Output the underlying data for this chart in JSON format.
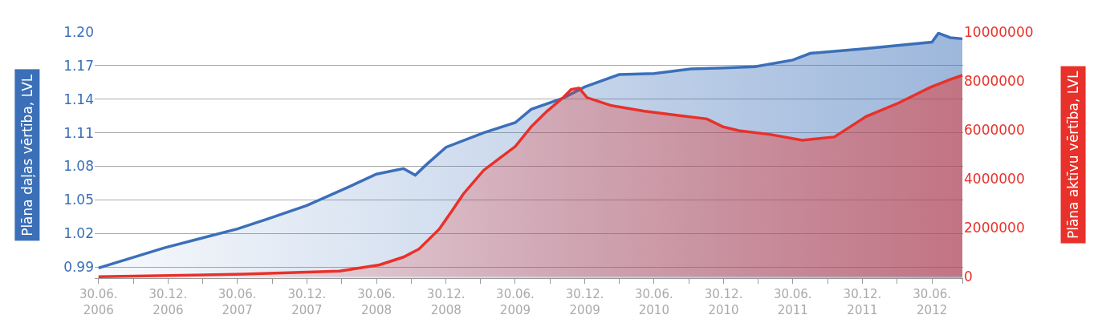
{
  "chart_data": {
    "type": "area",
    "ylabel": "Plāna daļas vērtība, LVL",
    "y2label": "Plāna aktīvu vērtība, LVL",
    "xlim": [
      "2006-06-20",
      "2012-09-20"
    ],
    "xticks": [
      {
        "value": "2006-06-30",
        "label": "30.06.\n2006"
      },
      {
        "value": "2006-09-30",
        "label": null
      },
      {
        "value": "2006-12-30",
        "label": "30.12.\n2006"
      },
      {
        "value": "2007-03-30",
        "label": null
      },
      {
        "value": "2007-06-30",
        "label": "30.06.\n2007"
      },
      {
        "value": "2007-09-30",
        "label": null
      },
      {
        "value": "2007-12-30",
        "label": "30.12.\n2007"
      },
      {
        "value": "2008-03-30",
        "label": null
      },
      {
        "value": "2008-06-30",
        "label": "30.06.\n2008"
      },
      {
        "value": "2008-09-30",
        "label": null
      },
      {
        "value": "2008-12-30",
        "label": "30.12.\n2008"
      },
      {
        "value": "2009-03-30",
        "label": null
      },
      {
        "value": "2009-06-30",
        "label": "30.06.\n2009"
      },
      {
        "value": "2009-09-30",
        "label": null
      },
      {
        "value": "2009-12-30",
        "label": "30.12.\n2009"
      },
      {
        "value": "2010-03-30",
        "label": null
      },
      {
        "value": "2010-06-30",
        "label": "30.06.\n2010"
      },
      {
        "value": "2010-09-30",
        "label": null
      },
      {
        "value": "2010-12-30",
        "label": "30.12.\n2010"
      },
      {
        "value": "2011-03-30",
        "label": null
      },
      {
        "value": "2011-06-30",
        "label": "30.06.\n2011"
      },
      {
        "value": "2011-09-30",
        "label": null
      },
      {
        "value": "2011-12-30",
        "label": "30.12.\n2011"
      },
      {
        "value": "2012-03-30",
        "label": null
      },
      {
        "value": "2012-06-30",
        "label": "30.06.\n2012"
      },
      {
        "value": "2012-09-18",
        "label": null
      }
    ],
    "ylim": [
      0.98,
      1.2
    ],
    "yticks": [
      0.99,
      1.02,
      1.05,
      1.08,
      1.11,
      1.14,
      1.17,
      {
        "value": 1.2,
        "label": "1.20"
      }
    ],
    "y2lim": [
      -60000,
      10000000
    ],
    "y2ticks": [
      0,
      2000000,
      4000000,
      6000000,
      8000000,
      10000000
    ],
    "grid": "y",
    "series": [
      {
        "color": "#3b6fb8",
        "x": [
          "2006-06-30",
          "2006-12-19",
          "2007-06-30",
          "2007-09-18",
          "2007-12-30",
          "2008-04-15",
          "2008-06-30",
          "2008-09-09",
          "2008-10-10",
          "2008-11-10",
          "2008-12-30",
          "2009-04-08",
          "2009-06-30",
          "2009-08-11",
          "2009-11-03",
          "2009-12-30",
          "2010-03-30",
          "2010-06-30",
          "2010-10-05",
          "2010-12-30",
          "2011-03-22",
          "2011-06-30",
          "2011-08-15",
          "2011-12-30",
          "2012-06-30",
          "2012-07-17",
          "2012-08-17",
          "2012-09-18"
        ],
        "values": [
          0.989,
          1.007,
          1.024,
          1.033,
          1.045,
          1.061,
          1.073,
          1.078,
          1.072,
          1.082,
          1.097,
          1.11,
          1.119,
          1.131,
          1.141,
          1.151,
          1.162,
          1.163,
          1.167,
          1.168,
          1.169,
          1.175,
          1.181,
          1.185,
          1.191,
          1.199,
          1.195,
          1.194
        ]
      },
      {
        "color": "#e8312a",
        "axis": "y2",
        "x": [
          "2006-06-30",
          "2007-07-17",
          "2008-03-25",
          "2008-07-08",
          "2008-09-09",
          "2008-10-20",
          "2008-12-12",
          "2009-01-14",
          "2009-02-14",
          "2009-04-08",
          "2009-05-20",
          "2009-06-30",
          "2009-08-11",
          "2009-09-22",
          "2009-11-03",
          "2009-11-24",
          "2009-12-15",
          "2010-01-05",
          "2010-03-09",
          "2010-06-02",
          "2010-08-24",
          "2010-11-16",
          "2010-12-28",
          "2011-02-08",
          "2011-05-03",
          "2011-07-25",
          "2011-10-17",
          "2011-11-28",
          "2012-01-09",
          "2012-04-03",
          "2012-06-26",
          "2012-08-17",
          "2012-09-18"
        ],
        "values": [
          0,
          100000,
          230000,
          480000,
          800000,
          1130000,
          1940000,
          2680000,
          3390000,
          4350000,
          4840000,
          5320000,
          6130000,
          6770000,
          7320000,
          7650000,
          7710000,
          7320000,
          7000000,
          6770000,
          6610000,
          6450000,
          6130000,
          5970000,
          5810000,
          5580000,
          5710000,
          6130000,
          6550000,
          7100000,
          7740000,
          8060000,
          8230000
        ]
      }
    ]
  }
}
